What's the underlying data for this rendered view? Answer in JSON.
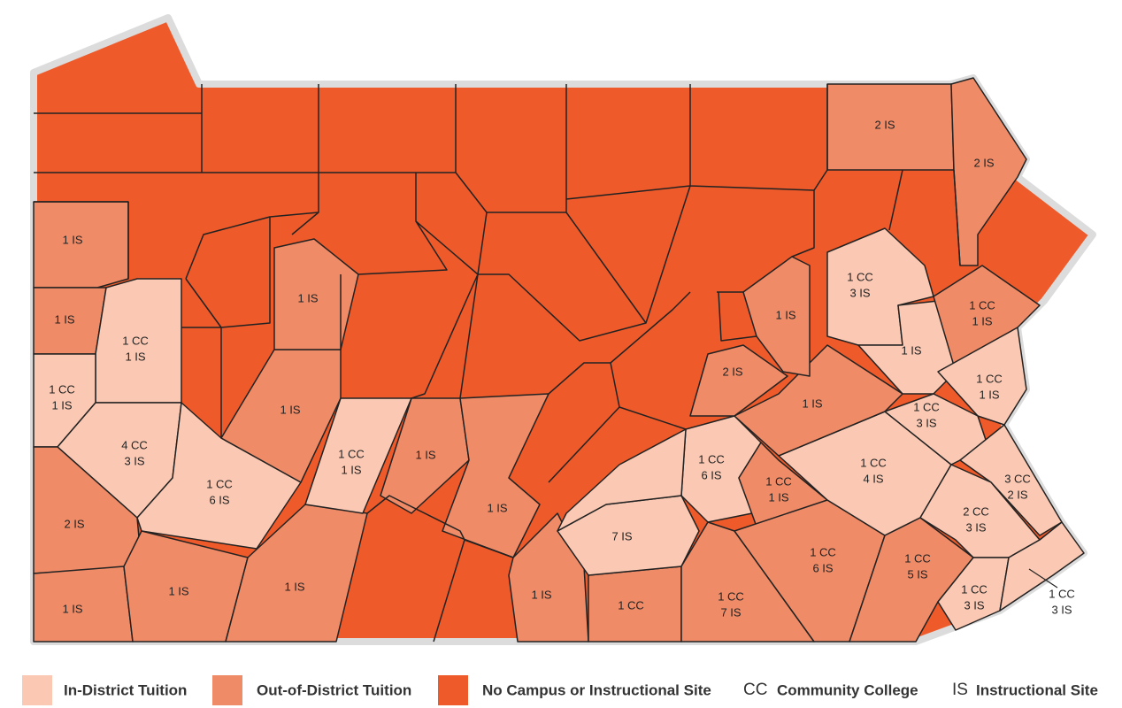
{
  "legend": {
    "items": [
      {
        "label": "In-District Tuition",
        "color": "#fbc9b3"
      },
      {
        "label": "Out-of-District Tuition",
        "color": "#f08b67"
      },
      {
        "label": "No Campus or Instructional Site",
        "color": "#ee5a2a"
      }
    ],
    "abbreviations": [
      {
        "abbr": "CC",
        "meaning": "Community College"
      },
      {
        "abbr": "IS",
        "meaning": "Instructional Site"
      }
    ]
  },
  "counties": [
    {
      "category": 1,
      "label": [
        "2 IS"
      ]
    },
    {
      "category": 1,
      "label": [
        "2 IS"
      ]
    },
    {
      "category": 1,
      "label": [
        "1 IS"
      ]
    },
    {
      "category": 1,
      "label": [
        "1 IS"
      ]
    },
    {
      "category": 0,
      "label": [
        "1 CC",
        "1 IS"
      ]
    },
    {
      "category": 0,
      "label": [
        "1 CC",
        "1 IS"
      ]
    },
    {
      "category": 0,
      "label": [
        "4 CC",
        "3 IS"
      ]
    },
    {
      "category": 0,
      "label": [
        "1 CC",
        "6 IS"
      ]
    },
    {
      "category": 1,
      "label": [
        "2 IS"
      ]
    },
    {
      "category": 1,
      "label": [
        "1 IS"
      ]
    },
    {
      "category": 1,
      "label": [
        "1 IS"
      ]
    },
    {
      "category": 1,
      "label": [
        "1 IS"
      ]
    },
    {
      "category": 1,
      "label": [
        "1 IS"
      ]
    },
    {
      "category": 1,
      "label": [
        "1 IS"
      ]
    },
    {
      "category": 0,
      "label": [
        "1 CC",
        "1 IS"
      ]
    },
    {
      "category": 1,
      "label": [
        "1 IS"
      ]
    },
    {
      "category": 1,
      "label": [
        "1 IS"
      ]
    },
    {
      "category": 1,
      "label": [
        "1 IS"
      ]
    },
    {
      "category": 1,
      "label": [
        "1 CC"
      ]
    },
    {
      "category": 0,
      "label": [
        "7 IS"
      ]
    },
    {
      "category": 0,
      "label": [
        "1 CC",
        "6 IS"
      ]
    },
    {
      "category": 0
    },
    {
      "category": 1,
      "label": [
        "1 CC",
        "7 IS"
      ]
    },
    {
      "category": 1,
      "label": [
        "1 CC",
        "1 IS"
      ]
    },
    {
      "category": 1,
      "label": [
        "1 CC",
        "6 IS"
      ]
    },
    {
      "category": 0,
      "label": [
        "1 CC",
        "4 IS"
      ]
    },
    {
      "category": 1,
      "label": [
        "1 IS"
      ]
    },
    {
      "category": 1,
      "label": [
        "2 IS"
      ]
    },
    {
      "category": 1,
      "label": [
        "1 IS"
      ]
    },
    {
      "category": 0,
      "label": [
        "1 CC",
        "3 IS"
      ]
    },
    {
      "category": 0,
      "label": [
        "1 IS"
      ]
    },
    {
      "category": 1,
      "label": [
        "1 CC",
        "1 IS"
      ]
    },
    {
      "category": 0,
      "label": [
        "1 CC",
        "1 IS"
      ]
    },
    {
      "category": 0,
      "label": [
        "1 CC",
        "3 IS"
      ]
    },
    {
      "category": 0,
      "label": [
        "3 CC",
        "2 IS"
      ]
    },
    {
      "category": 0,
      "label": [
        "2 CC",
        "3 IS"
      ]
    },
    {
      "category": 1,
      "label": [
        "1 CC",
        "5 IS"
      ]
    },
    {
      "category": 0,
      "label": [
        "1 CC",
        "3 IS"
      ]
    },
    {
      "category": 0,
      "label": [
        "1 CC",
        "3 IS"
      ]
    }
  ]
}
